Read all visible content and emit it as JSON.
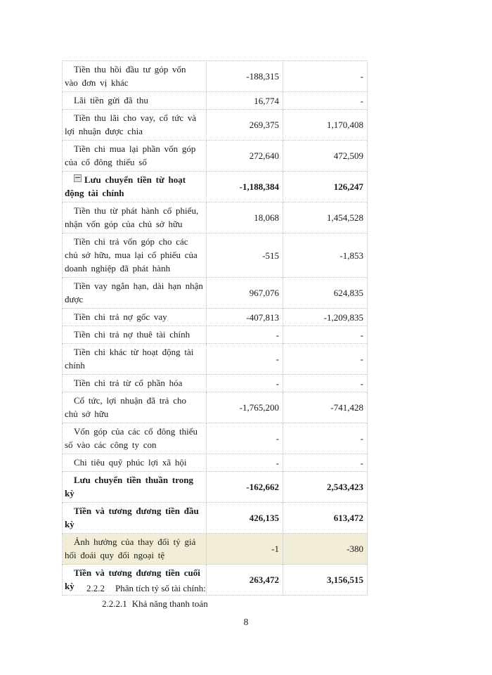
{
  "table": {
    "rows": [
      {
        "label": "Tiền thu hồi đầu tư góp vốn vào đơn vị khác",
        "v1": "-188,315",
        "v2": "-",
        "bold": false,
        "highlight": false,
        "icon": false
      },
      {
        "label": "Lãi tiền gửi đã thu",
        "v1": "16,774",
        "v2": "-",
        "bold": false,
        "highlight": false,
        "icon": false
      },
      {
        "label": "Tiền thu lãi cho vay, cổ tức và lợi nhuận được chia",
        "v1": "269,375",
        "v2": "1,170,408",
        "bold": false,
        "highlight": false,
        "icon": false
      },
      {
        "label": "Tiền chi mua lại phần vốn góp của cổ đông thiểu số",
        "v1": "272,640",
        "v2": "472,509",
        "bold": false,
        "highlight": false,
        "icon": false
      },
      {
        "label": "Lưu chuyển tiền từ hoạt động tài chính",
        "v1": "-1,188,384",
        "v2": "126,247",
        "bold": true,
        "highlight": false,
        "icon": true
      },
      {
        "label": "Tiền thu từ phát hành cổ phiếu, nhận vốn góp của chủ sở hữu",
        "v1": "18,068",
        "v2": "1,454,528",
        "bold": false,
        "highlight": false,
        "icon": false
      },
      {
        "label": "Tiền chi trả vốn góp cho các chủ sở hữu, mua lại cổ phiếu của doanh nghiệp  đã phát hành",
        "v1": "-515",
        "v2": "-1,853",
        "bold": false,
        "highlight": false,
        "icon": false
      },
      {
        "label": "Tiền vay ngắn hạn, dài hạn nhận được",
        "v1": "967,076",
        "v2": "624,835",
        "bold": false,
        "highlight": false,
        "icon": false
      },
      {
        "label": "Tiền chi trả nợ gốc vay",
        "v1": "-407,813",
        "v2": "-1,209,835",
        "bold": false,
        "highlight": false,
        "icon": false
      },
      {
        "label": "Tiền chi trả nợ thuê tài chính",
        "v1": "-",
        "v2": "-",
        "bold": false,
        "highlight": false,
        "icon": false
      },
      {
        "label": "Tiền chi khác từ hoạt động tài chính",
        "v1": "-",
        "v2": "-",
        "bold": false,
        "highlight": false,
        "icon": false
      },
      {
        "label": "Tiền chi trả từ cổ phần hóa",
        "v1": "-",
        "v2": "-",
        "bold": false,
        "highlight": false,
        "icon": false
      },
      {
        "label": "Cổ tức, lợi nhuận  đã trả cho chủ sở hữu",
        "v1": "-1,765,200",
        "v2": "-741,428",
        "bold": false,
        "highlight": false,
        "icon": false
      },
      {
        "label": "Vốn góp của các cổ đông thiểu số vào các công ty con",
        "v1": "-",
        "v2": "-",
        "bold": false,
        "highlight": false,
        "icon": false
      },
      {
        "label": "Chi tiêu quỹ phúc lợi xã hội",
        "v1": "-",
        "v2": "-",
        "bold": false,
        "highlight": false,
        "icon": false
      },
      {
        "label": "Lưu chuyển tiền thuần trong kỳ",
        "v1": "-162,662",
        "v2": "2,543,423",
        "bold": true,
        "highlight": false,
        "icon": false
      },
      {
        "label": "Tiền và tương đương tiền đầu kỳ",
        "v1": "426,135",
        "v2": "613,472",
        "bold": true,
        "highlight": false,
        "icon": false
      },
      {
        "label": "Ảnh hưởng của thay đổi tỷ giá hối đoái quy đổi ngoại tệ",
        "v1": "-1",
        "v2": "-380",
        "bold": false,
        "highlight": true,
        "icon": false
      },
      {
        "label": "Tiền và tương đương tiền cuối kỳ",
        "v1": "263,472",
        "v2": "3,156,515",
        "bold": true,
        "highlight": false,
        "icon": false
      }
    ]
  },
  "footer": {
    "section_number": "2.2.2",
    "section_title": "Phân tích tỷ số tài chính:",
    "subsection_number": "2.2.2.1",
    "subsection_title": "Khả năng thanh toán",
    "page_number": "8"
  },
  "colors": {
    "highlight_row_bg": "#F2EDD7",
    "table_border": "#C2C2C2"
  }
}
